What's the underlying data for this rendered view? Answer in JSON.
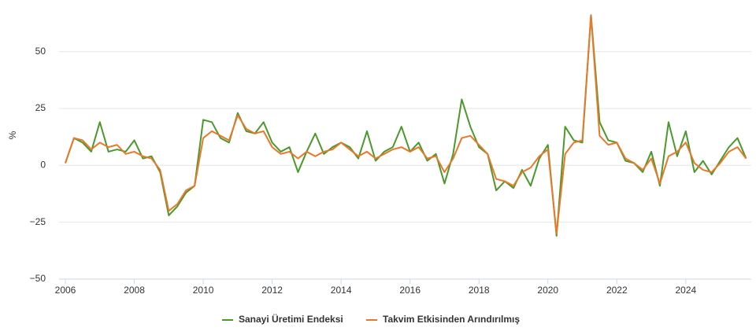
{
  "chart_data": {
    "type": "line",
    "y_label": "%",
    "x": [
      2006,
      2006.25,
      2006.5,
      2006.75,
      2007,
      2007.25,
      2007.5,
      2007.75,
      2008,
      2008.25,
      2008.5,
      2008.75,
      2009,
      2009.25,
      2009.5,
      2009.75,
      2010,
      2010.25,
      2010.5,
      2010.75,
      2011,
      2011.25,
      2011.5,
      2011.75,
      2012,
      2012.25,
      2012.5,
      2012.75,
      2013,
      2013.25,
      2013.5,
      2013.75,
      2014,
      2014.25,
      2014.5,
      2014.75,
      2015,
      2015.25,
      2015.5,
      2015.75,
      2016,
      2016.25,
      2016.5,
      2016.75,
      2017,
      2017.25,
      2017.5,
      2017.75,
      2018,
      2018.25,
      2018.5,
      2018.75,
      2019,
      2019.25,
      2019.5,
      2019.75,
      2020,
      2020.25,
      2020.5,
      2020.75,
      2021,
      2021.25,
      2021.5,
      2021.75,
      2022,
      2022.25,
      2022.5,
      2022.75,
      2023,
      2023.25,
      2023.5,
      2023.75,
      2024,
      2024.25,
      2024.5,
      2024.75,
      2025,
      2025.25,
      2025.5,
      2025.75
    ],
    "series": [
      {
        "name": "Sanayi Üretimi Endeksi",
        "color": "#4a9a2b",
        "values": [
          1,
          12,
          10,
          6,
          19,
          6,
          7,
          6,
          11,
          3,
          4,
          -3,
          -22,
          -18,
          -12,
          -9,
          20,
          19,
          12,
          10,
          23,
          15,
          14,
          19,
          10,
          6,
          8,
          -3,
          6,
          14,
          5,
          8,
          10,
          8,
          3,
          15,
          2,
          6,
          8,
          17,
          6,
          10,
          2,
          5,
          -8,
          5,
          29,
          17,
          8,
          5,
          -11,
          -7,
          -10,
          -2,
          -9,
          3,
          9,
          -31,
          17,
          11,
          10,
          66,
          19,
          11,
          10,
          2,
          1,
          -3,
          6,
          -9,
          19,
          4,
          15,
          -3,
          2,
          -4,
          2,
          8,
          12,
          3
        ]
      },
      {
        "name": "Takvim Etkisinden Arındırılmış",
        "color": "#e8782a",
        "values": [
          1,
          12,
          11,
          7,
          10,
          8,
          9,
          5,
          6,
          4,
          3,
          -2,
          -20,
          -17,
          -11,
          -9,
          12,
          15,
          13,
          11,
          22,
          16,
          14,
          15,
          8,
          5,
          6,
          3,
          6,
          4,
          6,
          7,
          10,
          7,
          4,
          6,
          3,
          5,
          7,
          8,
          6,
          8,
          3,
          4,
          -3,
          3,
          12,
          13,
          9,
          5,
          -6,
          -7,
          -9,
          -3,
          -1,
          4,
          7,
          -30,
          5,
          10,
          11,
          66,
          13,
          9,
          10,
          3,
          1,
          -2,
          3,
          -8,
          4,
          6,
          10,
          1,
          -2,
          -3,
          1,
          6,
          8,
          3
        ]
      }
    ],
    "xlim": [
      2006,
      2025.9
    ],
    "xticks": [
      2006,
      2008,
      2010,
      2012,
      2014,
      2016,
      2018,
      2020,
      2022,
      2024
    ],
    "ylim": [
      -50,
      68
    ],
    "yticks": [
      {
        "value": -50,
        "label": "−50"
      },
      {
        "value": -25,
        "label": "−25"
      },
      0,
      25,
      50
    ],
    "grid": true
  }
}
